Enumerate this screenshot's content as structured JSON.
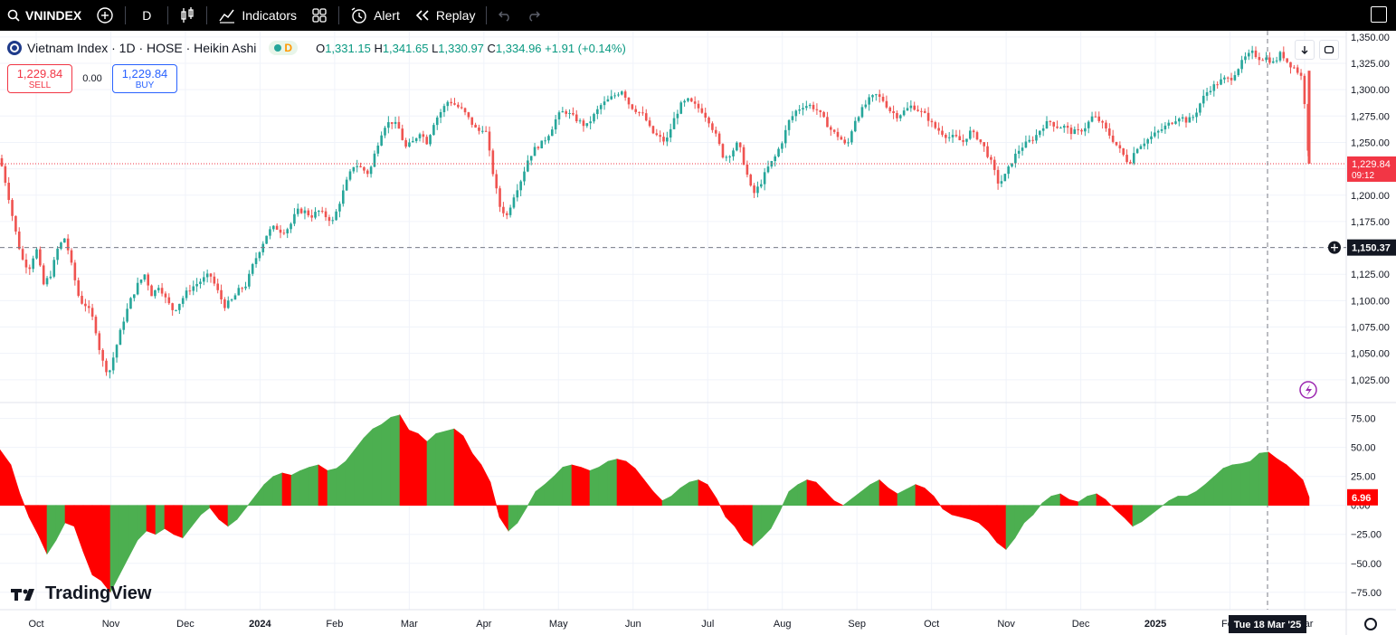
{
  "toolbar": {
    "symbol": "VNINDEX",
    "interval": "D",
    "indicators_label": "Indicators",
    "alert_label": "Alert",
    "replay_label": "Replay"
  },
  "legend": {
    "title": "Vietnam Index · 1D · HOSE · Heikin Ashi",
    "badge_letter": "D",
    "o_key": "O",
    "o_val": "1,331.15",
    "h_key": "H",
    "h_val": "1,341.65",
    "l_key": "L",
    "l_val": "1,330.97",
    "c_key": "C",
    "c_val": "1,334.96",
    "change": "+1.91 (+0.14%)"
  },
  "trade": {
    "sell_price": "1,229.84",
    "sell_label": "SELL",
    "spread": "0.00",
    "buy_price": "1,229.84",
    "buy_label": "BUY"
  },
  "branding": "TradingView",
  "colors": {
    "up": "#26a69a",
    "down": "#ef5350",
    "osc_up": "#4caf50",
    "osc_down": "#ff0000",
    "price_tag": "#f23645",
    "crosshair_tag": "#131722"
  },
  "chart_data": [
    {
      "type": "candlestick",
      "style": "heikin-ashi",
      "y_ticks": [
        "1,350.00",
        "1,325.00",
        "1,300.00",
        "1,275.00",
        "1,250.00",
        "1,225.00",
        "1,200.00",
        "1,175.00",
        "1,150.00",
        "1,125.00",
        "1,100.00",
        "1,075.00",
        "1,050.00",
        "1,025.00"
      ],
      "ylim": [
        1012,
        1355
      ],
      "x_ticks": [
        "Oct",
        "Nov",
        "Dec",
        "2024",
        "Feb",
        "Mar",
        "Apr",
        "May",
        "Jun",
        "Jul",
        "Aug",
        "Sep",
        "Oct",
        "Nov",
        "Dec",
        "2025",
        "Feb",
        "Mar"
      ],
      "last_price": "1,229.84",
      "last_price_value": 1229.84,
      "countdown": "09:12",
      "crosshair_price": "1,150.37",
      "crosshair_price_value": 1150.37,
      "crosshair_date": "Tue 18 Mar '25",
      "close_path": [
        [
          0,
          1235
        ],
        [
          8,
          1205
        ],
        [
          16,
          1170
        ],
        [
          24,
          1140
        ],
        [
          32,
          1130
        ],
        [
          40,
          1150
        ],
        [
          48,
          1115
        ],
        [
          56,
          1125
        ],
        [
          64,
          1150
        ],
        [
          72,
          1160
        ],
        [
          80,
          1130
        ],
        [
          88,
          1100
        ],
        [
          96,
          1095
        ],
        [
          104,
          1080
        ],
        [
          112,
          1045
        ],
        [
          120,
          1030
        ],
        [
          128,
          1055
        ],
        [
          136,
          1080
        ],
        [
          144,
          1100
        ],
        [
          152,
          1115
        ],
        [
          160,
          1125
        ],
        [
          168,
          1105
        ],
        [
          176,
          1115
        ],
        [
          184,
          1100
        ],
        [
          192,
          1090
        ],
        [
          200,
          1100
        ],
        [
          208,
          1110
        ],
        [
          216,
          1115
        ],
        [
          224,
          1120
        ],
        [
          232,
          1125
        ],
        [
          240,
          1110
        ],
        [
          248,
          1095
        ],
        [
          256,
          1100
        ],
        [
          264,
          1110
        ],
        [
          272,
          1115
        ],
        [
          280,
          1135
        ],
        [
          288,
          1150
        ],
        [
          296,
          1165
        ],
        [
          304,
          1170
        ],
        [
          312,
          1165
        ],
        [
          320,
          1170
        ],
        [
          328,
          1185
        ],
        [
          336,
          1185
        ],
        [
          344,
          1180
        ],
        [
          352,
          1185
        ],
        [
          360,
          1180
        ],
        [
          368,
          1175
        ],
        [
          376,
          1195
        ],
        [
          384,
          1215
        ],
        [
          392,
          1230
        ],
        [
          400,
          1225
        ],
        [
          408,
          1220
        ],
        [
          416,
          1245
        ],
        [
          424,
          1265
        ],
        [
          432,
          1270
        ],
        [
          440,
          1265
        ],
        [
          448,
          1245
        ],
        [
          456,
          1250
        ],
        [
          464,
          1260
        ],
        [
          472,
          1250
        ],
        [
          480,
          1270
        ],
        [
          488,
          1280
        ],
        [
          496,
          1290
        ],
        [
          504,
          1285
        ],
        [
          512,
          1280
        ],
        [
          520,
          1270
        ],
        [
          528,
          1260
        ],
        [
          536,
          1265
        ],
        [
          544,
          1225
        ],
        [
          552,
          1190
        ],
        [
          560,
          1180
        ],
        [
          568,
          1200
        ],
        [
          576,
          1215
        ],
        [
          584,
          1235
        ],
        [
          592,
          1245
        ],
        [
          600,
          1250
        ],
        [
          608,
          1260
        ],
        [
          616,
          1275
        ],
        [
          624,
          1280
        ],
        [
          632,
          1275
        ],
        [
          640,
          1270
        ],
        [
          648,
          1265
        ],
        [
          656,
          1275
        ],
        [
          664,
          1285
        ],
        [
          672,
          1290
        ],
        [
          680,
          1295
        ],
        [
          688,
          1300
        ],
        [
          696,
          1285
        ],
        [
          704,
          1280
        ],
        [
          712,
          1275
        ],
        [
          720,
          1260
        ],
        [
          728,
          1255
        ],
        [
          736,
          1250
        ],
        [
          744,
          1270
        ],
        [
          752,
          1285
        ],
        [
          760,
          1290
        ],
        [
          768,
          1285
        ],
        [
          776,
          1280
        ],
        [
          784,
          1270
        ],
        [
          792,
          1255
        ],
        [
          800,
          1235
        ],
        [
          808,
          1240
        ],
        [
          816,
          1250
        ],
        [
          824,
          1225
        ],
        [
          832,
          1200
        ],
        [
          840,
          1210
        ],
        [
          848,
          1225
        ],
        [
          856,
          1235
        ],
        [
          864,
          1250
        ],
        [
          872,
          1270
        ],
        [
          880,
          1280
        ],
        [
          888,
          1285
        ],
        [
          896,
          1285
        ],
        [
          904,
          1280
        ],
        [
          912,
          1270
        ],
        [
          920,
          1260
        ],
        [
          928,
          1255
        ],
        [
          936,
          1245
        ],
        [
          944,
          1270
        ],
        [
          952,
          1280
        ],
        [
          960,
          1290
        ],
        [
          968,
          1295
        ],
        [
          976,
          1290
        ],
        [
          984,
          1280
        ],
        [
          992,
          1275
        ],
        [
          1000,
          1280
        ],
        [
          1008,
          1285
        ],
        [
          1016,
          1280
        ],
        [
          1024,
          1275
        ],
        [
          1032,
          1265
        ],
        [
          1040,
          1260
        ],
        [
          1048,
          1255
        ],
        [
          1056,
          1255
        ],
        [
          1064,
          1250
        ],
        [
          1072,
          1260
        ],
        [
          1080,
          1255
        ],
        [
          1088,
          1245
        ],
        [
          1096,
          1230
        ],
        [
          1104,
          1210
        ],
        [
          1112,
          1220
        ],
        [
          1120,
          1235
        ],
        [
          1128,
          1245
        ],
        [
          1136,
          1250
        ],
        [
          1144,
          1255
        ],
        [
          1152,
          1265
        ],
        [
          1160,
          1270
        ],
        [
          1168,
          1265
        ],
        [
          1176,
          1265
        ],
        [
          1184,
          1260
        ],
        [
          1192,
          1260
        ],
        [
          1200,
          1265
        ],
        [
          1208,
          1275
        ],
        [
          1216,
          1270
        ],
        [
          1224,
          1260
        ],
        [
          1232,
          1250
        ],
        [
          1240,
          1240
        ],
        [
          1248,
          1230
        ],
        [
          1256,
          1245
        ],
        [
          1264,
          1250
        ],
        [
          1272,
          1255
        ],
        [
          1280,
          1260
        ],
        [
          1288,
          1265
        ],
        [
          1296,
          1270
        ],
        [
          1304,
          1275
        ],
        [
          1312,
          1270
        ],
        [
          1320,
          1275
        ],
        [
          1328,
          1290
        ],
        [
          1336,
          1300
        ],
        [
          1344,
          1305
        ],
        [
          1352,
          1310
        ],
        [
          1360,
          1310
        ],
        [
          1368,
          1320
        ],
        [
          1376,
          1330
        ],
        [
          1384,
          1335
        ],
        [
          1392,
          1330
        ],
        [
          1400,
          1330
        ],
        [
          1408,
          1325
        ],
        [
          1416,
          1335
        ],
        [
          1424,
          1325
        ],
        [
          1432,
          1320
        ],
        [
          1440,
          1310
        ],
        [
          1447,
          1230
        ]
      ]
    },
    {
      "type": "area",
      "name": "oscillator",
      "y_ticks": [
        "75.00",
        "50.00",
        "25.00",
        "0.00",
        "−25.00",
        "−50.00",
        "−75.00"
      ],
      "ylim": [
        -90,
        88
      ],
      "last_value": "6.96",
      "last_value_num": 6.96,
      "points": [
        [
          0,
          48
        ],
        [
          12,
          35
        ],
        [
          22,
          10
        ],
        [
          32,
          -10
        ],
        [
          42,
          -25
        ],
        [
          52,
          -42
        ],
        [
          62,
          -30
        ],
        [
          72,
          -15
        ],
        [
          82,
          -18
        ],
        [
          92,
          -40
        ],
        [
          102,
          -60
        ],
        [
          112,
          -65
        ],
        [
          122,
          -75
        ],
        [
          132,
          -60
        ],
        [
          142,
          -45
        ],
        [
          152,
          -30
        ],
        [
          162,
          -22
        ],
        [
          172,
          -25
        ],
        [
          182,
          -20
        ],
        [
          192,
          -25
        ],
        [
          202,
          -28
        ],
        [
          212,
          -18
        ],
        [
          222,
          -8
        ],
        [
          232,
          -2
        ],
        [
          242,
          -12
        ],
        [
          252,
          -18
        ],
        [
          262,
          -12
        ],
        [
          272,
          -2
        ],
        [
          282,
          8
        ],
        [
          292,
          18
        ],
        [
          302,
          25
        ],
        [
          312,
          28
        ],
        [
          322,
          26
        ],
        [
          332,
          30
        ],
        [
          342,
          33
        ],
        [
          352,
          35
        ],
        [
          362,
          30
        ],
        [
          372,
          32
        ],
        [
          382,
          38
        ],
        [
          392,
          48
        ],
        [
          402,
          58
        ],
        [
          412,
          66
        ],
        [
          422,
          70
        ],
        [
          432,
          76
        ],
        [
          442,
          78
        ],
        [
          452,
          65
        ],
        [
          462,
          62
        ],
        [
          472,
          55
        ],
        [
          482,
          62
        ],
        [
          492,
          64
        ],
        [
          502,
          66
        ],
        [
          512,
          60
        ],
        [
          522,
          45
        ],
        [
          532,
          35
        ],
        [
          542,
          20
        ],
        [
          552,
          -10
        ],
        [
          562,
          -22
        ],
        [
          572,
          -15
        ],
        [
          582,
          -2
        ],
        [
          592,
          12
        ],
        [
          602,
          18
        ],
        [
          612,
          25
        ],
        [
          622,
          33
        ],
        [
          632,
          35
        ],
        [
          642,
          33
        ],
        [
          652,
          30
        ],
        [
          662,
          33
        ],
        [
          672,
          38
        ],
        [
          682,
          40
        ],
        [
          692,
          38
        ],
        [
          702,
          32
        ],
        [
          712,
          22
        ],
        [
          722,
          12
        ],
        [
          732,
          4
        ],
        [
          742,
          8
        ],
        [
          752,
          15
        ],
        [
          762,
          20
        ],
        [
          772,
          22
        ],
        [
          782,
          18
        ],
        [
          792,
          6
        ],
        [
          802,
          -10
        ],
        [
          812,
          -18
        ],
        [
          822,
          -30
        ],
        [
          832,
          -35
        ],
        [
          842,
          -28
        ],
        [
          852,
          -20
        ],
        [
          862,
          -5
        ],
        [
          872,
          12
        ],
        [
          882,
          18
        ],
        [
          892,
          22
        ],
        [
          902,
          20
        ],
        [
          912,
          12
        ],
        [
          922,
          4
        ],
        [
          932,
          0
        ],
        [
          942,
          6
        ],
        [
          952,
          12
        ],
        [
          962,
          18
        ],
        [
          972,
          22
        ],
        [
          982,
          15
        ],
        [
          992,
          10
        ],
        [
          1002,
          14
        ],
        [
          1012,
          18
        ],
        [
          1022,
          15
        ],
        [
          1032,
          8
        ],
        [
          1042,
          -3
        ],
        [
          1052,
          -8
        ],
        [
          1062,
          -10
        ],
        [
          1072,
          -12
        ],
        [
          1082,
          -15
        ],
        [
          1092,
          -22
        ],
        [
          1102,
          -32
        ],
        [
          1112,
          -38
        ],
        [
          1122,
          -28
        ],
        [
          1132,
          -15
        ],
        [
          1142,
          -8
        ],
        [
          1152,
          2
        ],
        [
          1162,
          8
        ],
        [
          1172,
          10
        ],
        [
          1182,
          5
        ],
        [
          1192,
          3
        ],
        [
          1202,
          8
        ],
        [
          1212,
          10
        ],
        [
          1222,
          5
        ],
        [
          1232,
          -3
        ],
        [
          1242,
          -10
        ],
        [
          1252,
          -18
        ],
        [
          1262,
          -14
        ],
        [
          1272,
          -8
        ],
        [
          1282,
          -2
        ],
        [
          1292,
          4
        ],
        [
          1302,
          8
        ],
        [
          1312,
          8
        ],
        [
          1322,
          12
        ],
        [
          1332,
          18
        ],
        [
          1342,
          25
        ],
        [
          1352,
          32
        ],
        [
          1362,
          35
        ],
        [
          1372,
          36
        ],
        [
          1382,
          38
        ],
        [
          1392,
          45
        ],
        [
          1402,
          46
        ],
        [
          1412,
          40
        ],
        [
          1422,
          35
        ],
        [
          1432,
          28
        ],
        [
          1440,
          22
        ],
        [
          1447,
          6.96
        ]
      ]
    }
  ]
}
